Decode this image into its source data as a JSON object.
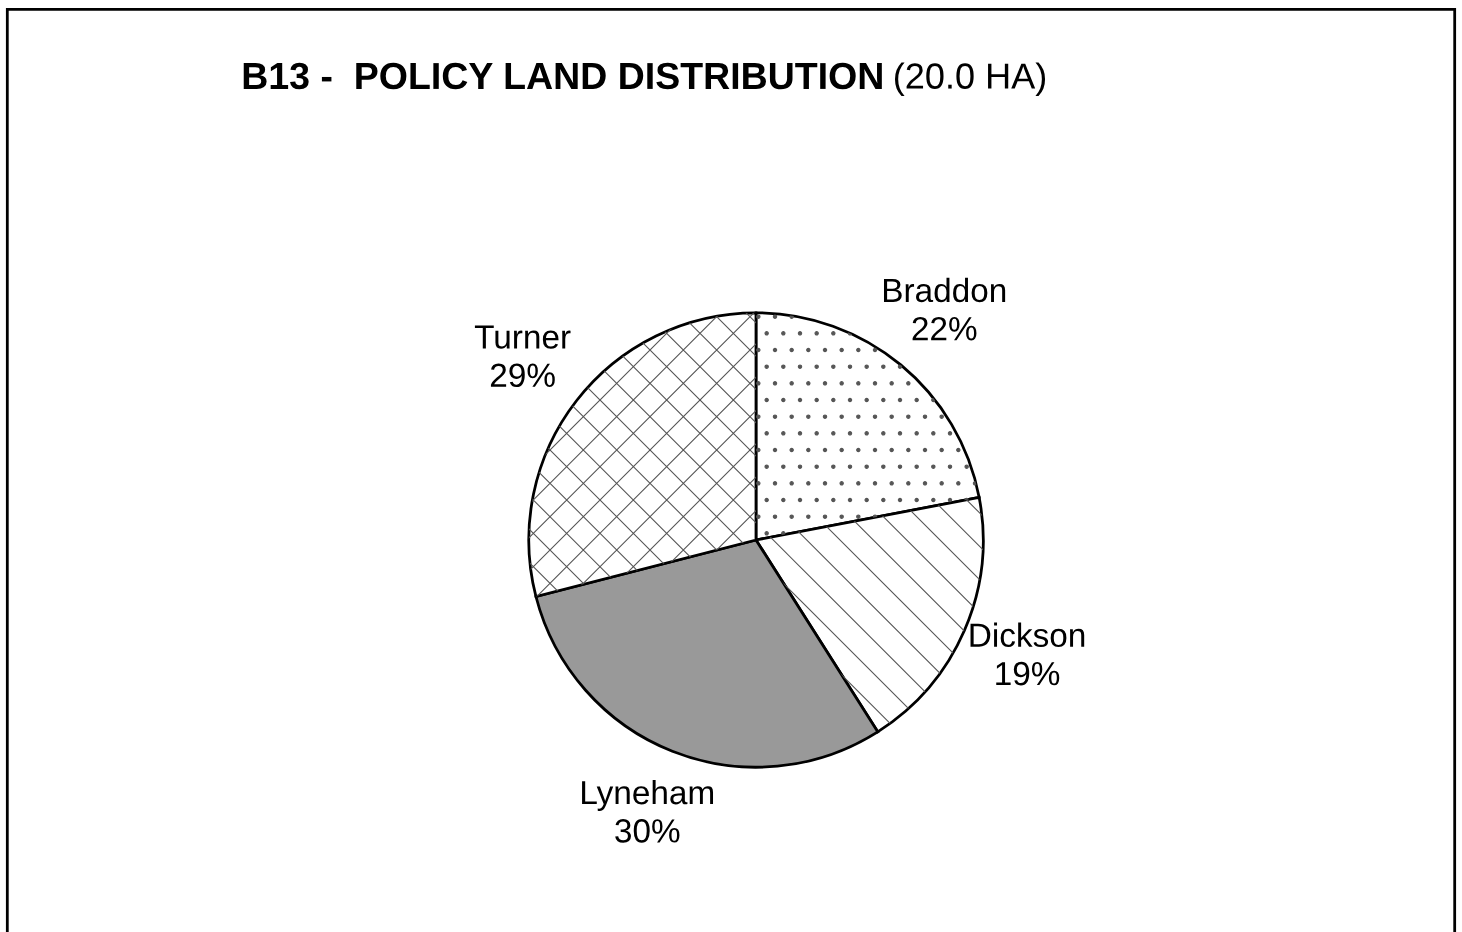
{
  "chart_data": {
    "type": "pie",
    "title": "B13 -  POLICY LAND DISTRIBUTION",
    "subtitle": "(20.0 HA)",
    "categories": [
      "Braddon",
      "Dickson",
      "Lyneham",
      "Turner"
    ],
    "values": [
      22,
      19,
      30,
      29
    ],
    "value_labels": [
      "22%",
      "19%",
      "30%",
      "29%"
    ],
    "colors": [
      "#ffffff",
      "#ffffff",
      "#999999",
      "#ffffff"
    ],
    "legend": false
  }
}
